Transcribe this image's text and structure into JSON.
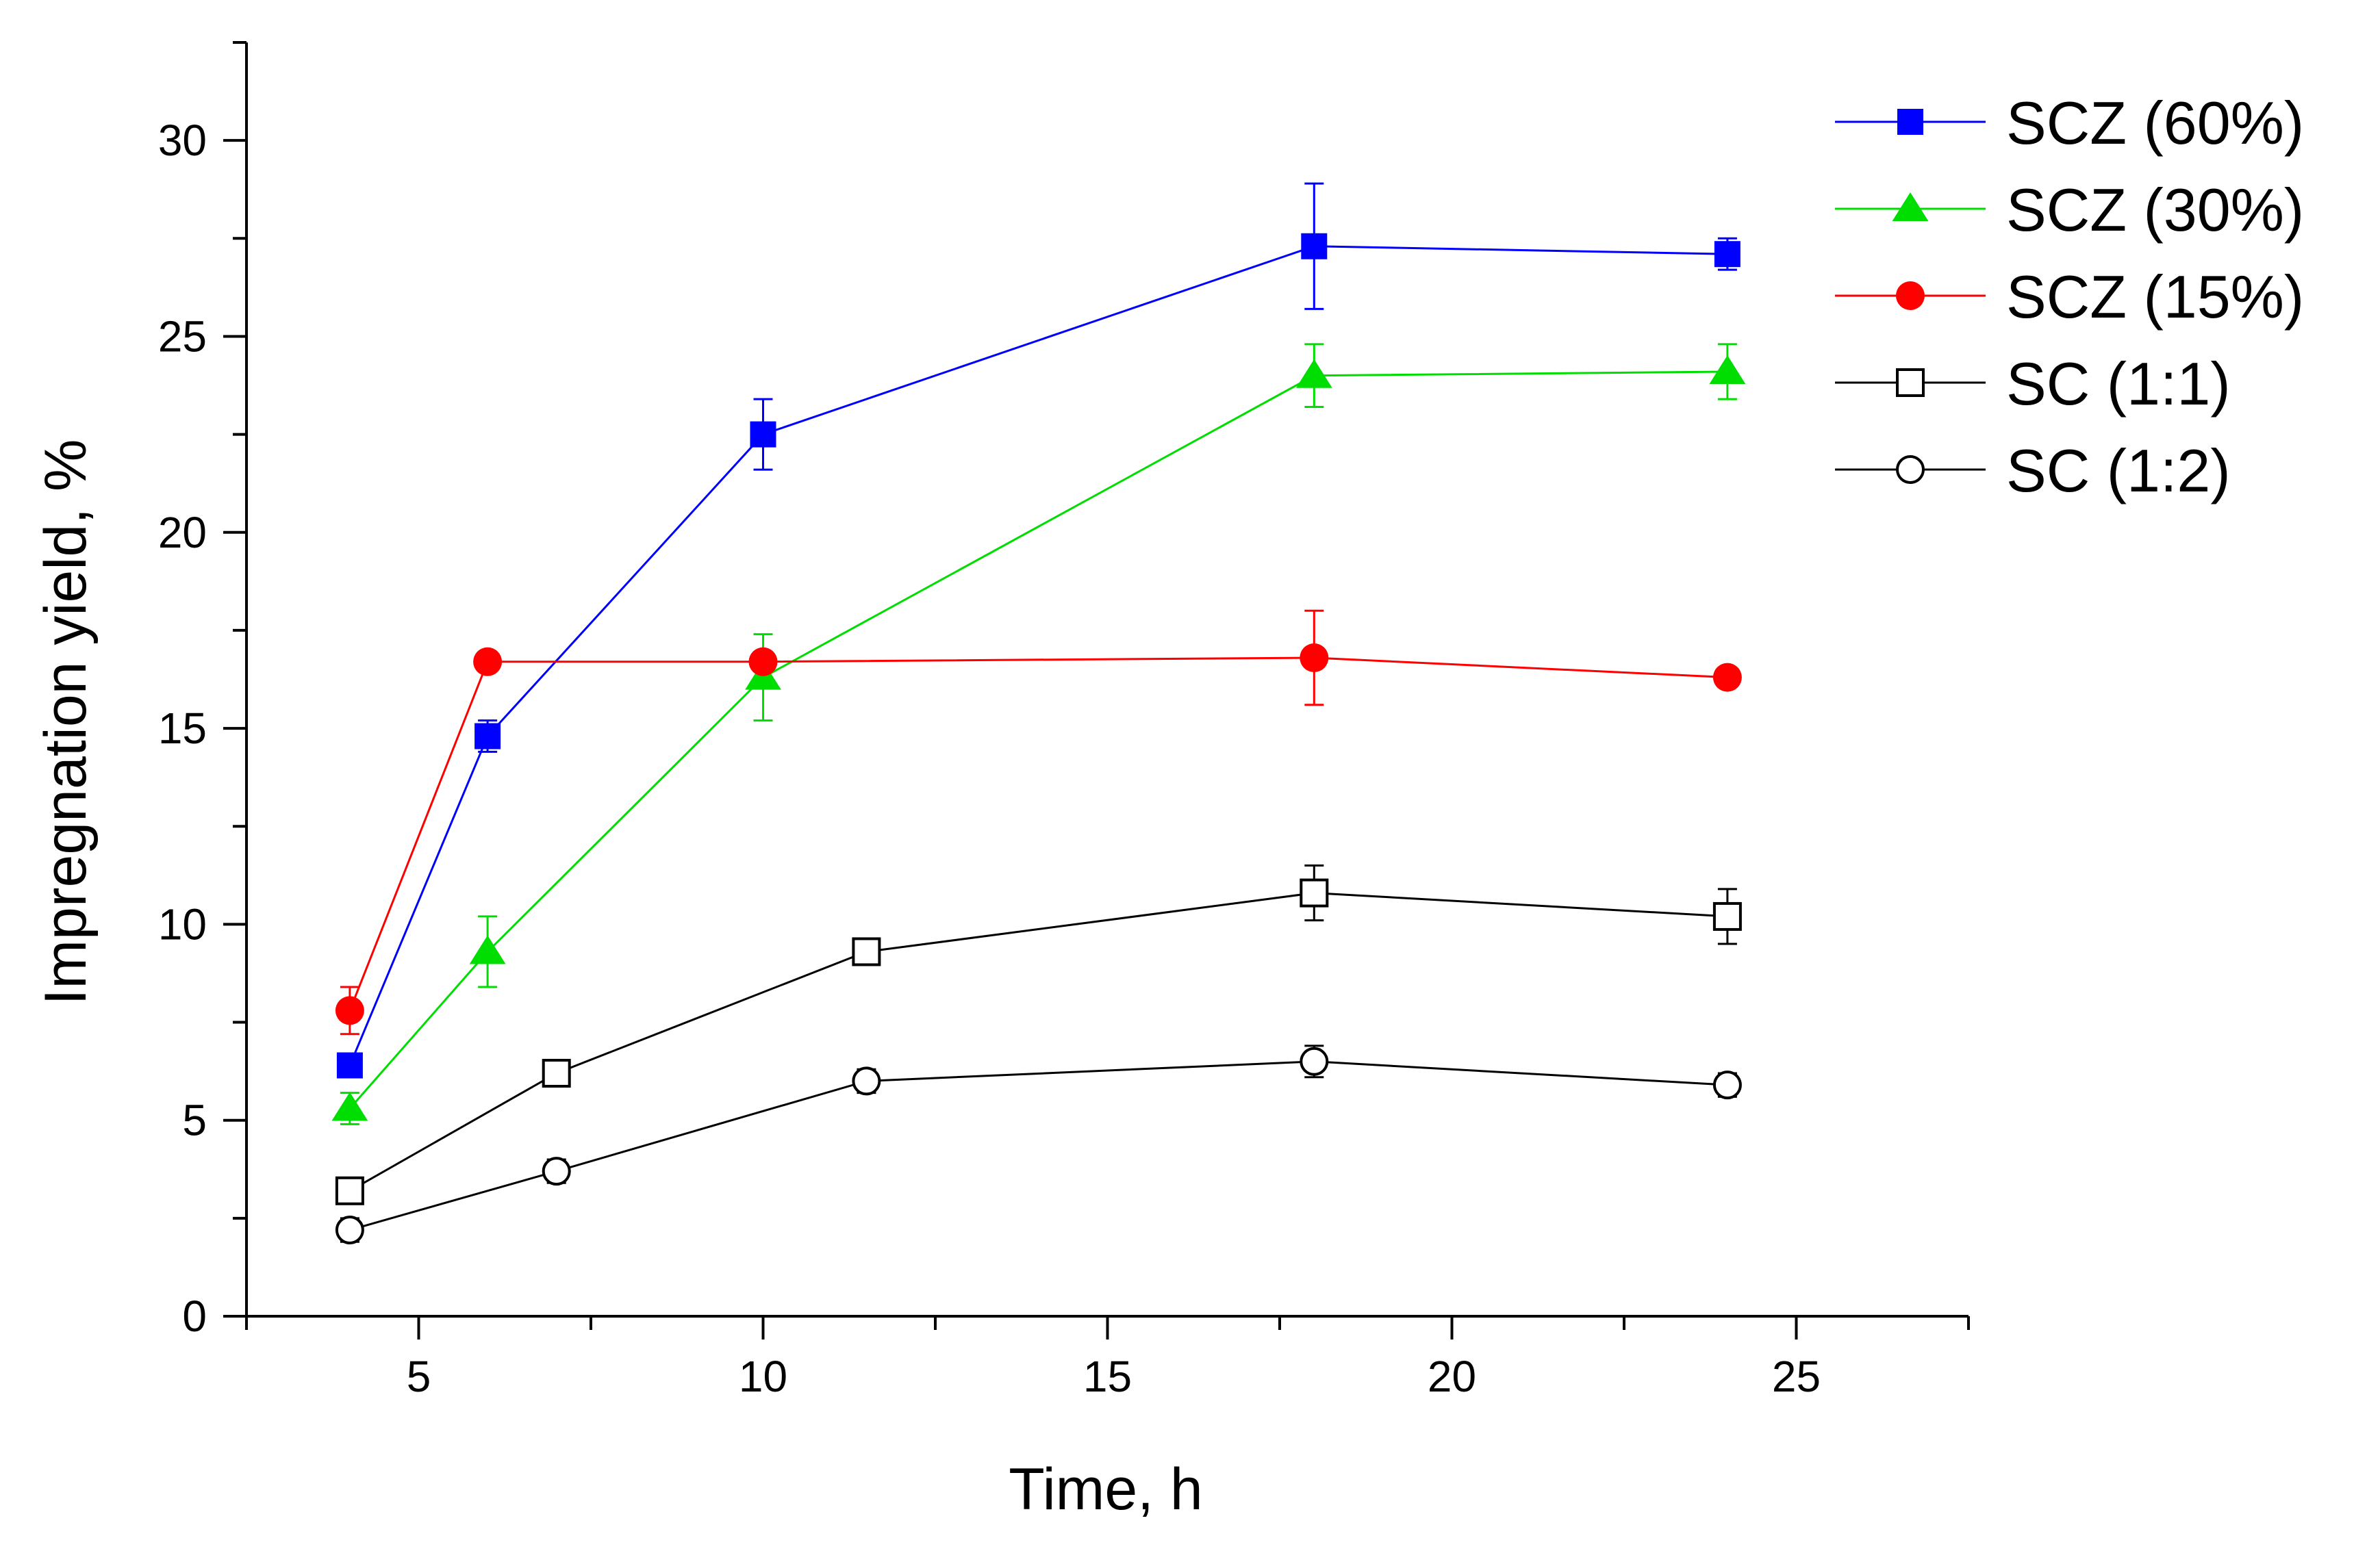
{
  "chart_data": {
    "type": "line",
    "title": "",
    "xlabel": "Time, h",
    "ylabel": "Impregnation yield, %",
    "xlim": [
      2.5,
      27.5
    ],
    "ylim": [
      0,
      32.5
    ],
    "xticks": [
      5,
      10,
      15,
      20,
      25
    ],
    "yticks": [
      0,
      5,
      10,
      15,
      20,
      25,
      30
    ],
    "grid": false,
    "legend_position": "top-right",
    "series": [
      {
        "name": "SCZ (60%)",
        "color": "#0000ff",
        "marker": "square-filled",
        "x": [
          4,
          6,
          10,
          18,
          24
        ],
        "y": [
          6.4,
          14.8,
          22.5,
          27.3,
          27.1
        ],
        "err": [
          0.2,
          0.4,
          0.9,
          1.6,
          0.4
        ]
      },
      {
        "name": "SCZ (30%)",
        "color": "#00dd00",
        "marker": "triangle-filled",
        "x": [
          4,
          6,
          10,
          18,
          24
        ],
        "y": [
          5.3,
          9.3,
          16.3,
          24.0,
          24.1
        ],
        "err": [
          0.4,
          0.9,
          1.1,
          0.8,
          0.7
        ]
      },
      {
        "name": "SCZ (15%)",
        "color": "#ff0000",
        "marker": "circle-filled",
        "x": [
          4,
          6,
          10,
          18,
          24
        ],
        "y": [
          7.8,
          16.7,
          16.7,
          16.8,
          16.3
        ],
        "err": [
          0.6,
          0.1,
          0.1,
          1.2,
          0.1
        ]
      },
      {
        "name": "SC (1:1)",
        "color": "#000000",
        "marker": "square-open",
        "x": [
          4,
          7,
          11.5,
          18,
          24
        ],
        "y": [
          3.2,
          6.2,
          9.3,
          10.8,
          10.2
        ],
        "err": [
          0.3,
          0.3,
          0.2,
          0.7,
          0.7
        ]
      },
      {
        "name": "SC (1:2)",
        "color": "#000000",
        "marker": "circle-open",
        "x": [
          4,
          7,
          11.5,
          18,
          24
        ],
        "y": [
          2.2,
          3.7,
          6.0,
          6.5,
          5.9
        ],
        "err": [
          0.3,
          0.3,
          0.3,
          0.4,
          0.3
        ]
      }
    ]
  }
}
